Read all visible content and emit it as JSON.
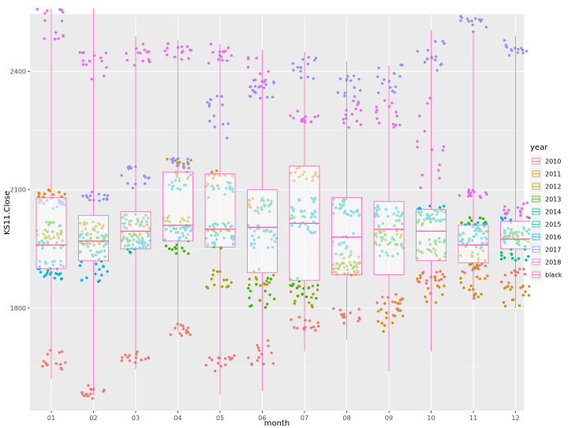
{
  "chart_data": {
    "type": "box-jitter",
    "xlabel": "month",
    "ylabel": "KS11.Close",
    "ylim": [
      1540,
      2545
    ],
    "y_ticks": [
      1800,
      2100,
      2400
    ],
    "categories": [
      "01",
      "02",
      "03",
      "04",
      "05",
      "06",
      "07",
      "08",
      "09",
      "10",
      "11",
      "12"
    ],
    "legend": {
      "title": "year",
      "position": "right",
      "entries": [
        "2010",
        "2011",
        "2012",
        "2013",
        "2014",
        "2015",
        "2016",
        "2017",
        "2018",
        "black"
      ]
    },
    "series_colors": {
      "2010": "#F8766D",
      "2011": "#D89000",
      "2012": "#A3A500",
      "2013": "#39B600",
      "2014": "#00BF7D",
      "2015": "#00BFC4",
      "2016": "#00B0F6",
      "2017": "#9590FF",
      "2018": "#E76BF3",
      "black": "#FF62BC"
    },
    "box_color": "#FF62BC",
    "boxes": [
      {
        "month": "01",
        "min": 1620,
        "q1": 1900,
        "median": 1960,
        "q3": 2080,
        "max": 2560
      },
      {
        "month": "02",
        "min": 1580,
        "q1": 1920,
        "median": 1970,
        "q3": 2035,
        "max": 2560
      },
      {
        "month": "03",
        "min": 1645,
        "q1": 1950,
        "median": 1995,
        "q3": 2045,
        "max": 2490
      },
      {
        "month": "04",
        "min": 1740,
        "q1": 1970,
        "median": 2010,
        "q3": 2145,
        "max": 2480
      },
      {
        "month": "05",
        "min": 1580,
        "q1": 1955,
        "median": 2000,
        "q3": 2140,
        "max": 2470
      },
      {
        "month": "06",
        "min": 1590,
        "q1": 1890,
        "median": 2005,
        "q3": 2100,
        "max": 2455
      },
      {
        "month": "07",
        "min": 1690,
        "q1": 1870,
        "median": 2015,
        "q3": 2160,
        "max": 2450
      },
      {
        "month": "08",
        "min": 1720,
        "q1": 1885,
        "median": 1980,
        "q3": 2080,
        "max": 2425
      },
      {
        "month": "09",
        "min": 1640,
        "q1": 1885,
        "median": 2000,
        "q3": 2070,
        "max": 2415
      },
      {
        "month": "10",
        "min": 1690,
        "q1": 1920,
        "median": 1995,
        "q3": 2050,
        "max": 2505
      },
      {
        "month": "11",
        "min": 1820,
        "q1": 1915,
        "median": 1960,
        "q3": 2010,
        "max": 2505
      },
      {
        "month": "12",
        "min": 1800,
        "q1": 1950,
        "median": 1975,
        "q3": 2020,
        "max": 2490
      }
    ],
    "series": [
      {
        "name": "2010",
        "points": [
          {
            "month": "01",
            "y": [
              1700,
              1640
            ]
          },
          {
            "month": "02",
            "y": [
              1610,
              1570
            ]
          },
          {
            "month": "03",
            "y": [
              1690,
              1655
            ]
          },
          {
            "month": "04",
            "y": [
              1730,
              1760
            ]
          },
          {
            "month": "05",
            "y": [
              1640,
              1690
            ]
          },
          {
            "month": "06",
            "y": [
              1650,
              1720
            ]
          },
          {
            "month": "07",
            "y": [
              1740,
              1780
            ]
          },
          {
            "month": "08",
            "y": [
              1760,
              1800
            ]
          },
          {
            "month": "09",
            "y": [
              1780,
              1840
            ]
          },
          {
            "month": "10",
            "y": [
              1860,
              1900
            ]
          },
          {
            "month": "11",
            "y": [
              1880,
              1920
            ]
          },
          {
            "month": "12",
            "y": [
              1850,
              1900
            ]
          }
        ]
      },
      {
        "name": "2011",
        "points": [
          {
            "month": "01",
            "y": [
              2070,
              2100
            ]
          },
          {
            "month": "02",
            "y": [
              1960,
              2000
            ]
          },
          {
            "month": "03",
            "y": [
              1970,
              2010
            ]
          },
          {
            "month": "04",
            "y": [
              2120,
              2180
            ]
          },
          {
            "month": "05",
            "y": [
              2100,
              2150
            ]
          },
          {
            "month": "06",
            "y": [
              2040,
              2080
            ]
          },
          {
            "month": "07",
            "y": [
              2120,
              2160
            ]
          },
          {
            "month": "08",
            "y": [
              1880,
              1920
            ]
          },
          {
            "month": "09",
            "y": [
              1740,
              1820
            ]
          },
          {
            "month": "10",
            "y": [
              1800,
              1880
            ]
          },
          {
            "month": "11",
            "y": [
              1820,
              1880
            ]
          },
          {
            "month": "12",
            "y": [
              1800,
              1860
            ]
          }
        ]
      },
      {
        "name": "2012",
        "points": [
          {
            "month": "01",
            "y": [
              1950,
              1990
            ]
          },
          {
            "month": "02",
            "y": [
              2000,
              2030
            ]
          },
          {
            "month": "03",
            "y": [
              2010,
              2040
            ]
          },
          {
            "month": "04",
            "y": [
              2000,
              2040
            ]
          },
          {
            "month": "05",
            "y": [
              1850,
              1900
            ]
          },
          {
            "month": "06",
            "y": [
              1850,
              1900
            ]
          },
          {
            "month": "07",
            "y": [
              1800,
              1860
            ]
          },
          {
            "month": "08",
            "y": [
              1890,
              1950
            ]
          },
          {
            "month": "09",
            "y": [
              1950,
              2000
            ]
          },
          {
            "month": "10",
            "y": [
              1920,
              1970
            ]
          },
          {
            "month": "11",
            "y": [
              1900,
              1950
            ]
          },
          {
            "month": "12",
            "y": [
              1960,
              2000
            ]
          }
        ]
      },
      {
        "name": "2013",
        "points": [
          {
            "month": "01",
            "y": [
              1990,
              2020
            ]
          },
          {
            "month": "02",
            "y": [
              1960,
              2000
            ]
          },
          {
            "month": "03",
            "y": [
              1950,
              1990
            ]
          },
          {
            "month": "04",
            "y": [
              1930,
              1980
            ]
          },
          {
            "month": "05",
            "y": [
              1950,
              2000
            ]
          },
          {
            "month": "06",
            "y": [
              1800,
              1880
            ]
          },
          {
            "month": "07",
            "y": [
              1820,
              1880
            ]
          },
          {
            "month": "08",
            "y": [
              1880,
              1920
            ]
          },
          {
            "month": "09",
            "y": [
              1960,
              2000
            ]
          },
          {
            "month": "10",
            "y": [
              2010,
              2050
            ]
          },
          {
            "month": "11",
            "y": [
              1980,
              2030
            ]
          },
          {
            "month": "12",
            "y": [
              1970,
              2000
            ]
          }
        ]
      },
      {
        "name": "2014",
        "points": [
          {
            "month": "01",
            "y": [
              1950,
              1970
            ]
          },
          {
            "month": "02",
            "y": [
              1920,
              1950
            ]
          },
          {
            "month": "03",
            "y": [
              1940,
              1980
            ]
          },
          {
            "month": "04",
            "y": [
              1990,
              2010
            ]
          },
          {
            "month": "05",
            "y": [
              2000,
              2020
            ]
          },
          {
            "month": "06",
            "y": [
              1990,
              2010
            ]
          },
          {
            "month": "07",
            "y": [
              2020,
              2080
            ]
          },
          {
            "month": "08",
            "y": [
              2040,
              2080
            ]
          },
          {
            "month": "09",
            "y": [
              2000,
              2050
            ]
          },
          {
            "month": "10",
            "y": [
              1930,
              1980
            ]
          },
          {
            "month": "11",
            "y": [
              1950,
              1980
            ]
          },
          {
            "month": "12",
            "y": [
              1920,
              1960
            ]
          }
        ]
      },
      {
        "name": "2015",
        "points": [
          {
            "month": "01",
            "y": [
              1880,
              1920
            ]
          },
          {
            "month": "02",
            "y": [
              1950,
              2000
            ]
          },
          {
            "month": "03",
            "y": [
              2000,
              2040
            ]
          },
          {
            "month": "04",
            "y": [
              2100,
              2140
            ]
          },
          {
            "month": "05",
            "y": [
              2080,
              2120
            ]
          },
          {
            "month": "06",
            "y": [
              2040,
              2080
            ]
          },
          {
            "month": "07",
            "y": [
              2030,
              2080
            ]
          },
          {
            "month": "08",
            "y": [
              1930,
              2000
            ]
          },
          {
            "month": "09",
            "y": [
              1930,
              1980
            ]
          },
          {
            "month": "10",
            "y": [
              2020,
              2040
            ]
          },
          {
            "month": "11",
            "y": [
              1990,
              2020
            ]
          },
          {
            "month": "12",
            "y": [
              1960,
              2000
            ]
          }
        ]
      },
      {
        "name": "2016",
        "points": [
          {
            "month": "01",
            "y": [
              1870,
              1910
            ]
          },
          {
            "month": "02",
            "y": [
              1860,
              1920
            ]
          },
          {
            "month": "03",
            "y": [
              1950,
              1990
            ]
          },
          {
            "month": "04",
            "y": [
              1970,
              2010
            ]
          },
          {
            "month": "05",
            "y": [
              1960,
              1990
            ]
          },
          {
            "month": "06",
            "y": [
              1950,
              1990
            ]
          },
          {
            "month": "07",
            "y": [
              1990,
              2020
            ]
          },
          {
            "month": "08",
            "y": [
              2030,
              2060
            ]
          },
          {
            "month": "09",
            "y": [
              2030,
              2060
            ]
          },
          {
            "month": "10",
            "y": [
              2020,
              2060
            ]
          },
          {
            "month": "11",
            "y": [
              1960,
              2000
            ]
          },
          {
            "month": "12",
            "y": [
              1990,
              2030
            ]
          }
        ]
      },
      {
        "name": "2017",
        "points": [
          {
            "month": "01",
            "y": [
              2050,
              2080
            ]
          },
          {
            "month": "02",
            "y": [
              2070,
              2100
            ]
          },
          {
            "month": "03",
            "y": [
              2100,
              2160
            ]
          },
          {
            "month": "04",
            "y": [
              2130,
              2180
            ]
          },
          {
            "month": "05",
            "y": [
              2220,
              2340
            ]
          },
          {
            "month": "06",
            "y": [
              2330,
              2380
            ]
          },
          {
            "month": "07",
            "y": [
              2380,
              2440
            ]
          },
          {
            "month": "08",
            "y": [
              2320,
              2390
            ]
          },
          {
            "month": "09",
            "y": [
              2340,
              2420
            ]
          },
          {
            "month": "10",
            "y": [
              2400,
              2480
            ]
          },
          {
            "month": "11",
            "y": [
              2500,
              2540
            ]
          },
          {
            "month": "12",
            "y": [
              2440,
              2480
            ]
          }
        ]
      },
      {
        "name": "2018",
        "points": [
          {
            "month": "01",
            "y": [
              2480,
              2560
            ]
          },
          {
            "month": "02",
            "y": [
              2380,
              2450
            ]
          },
          {
            "month": "03",
            "y": [
              2410,
              2480
            ]
          },
          {
            "month": "04",
            "y": [
              2420,
              2470
            ]
          },
          {
            "month": "05",
            "y": [
              2420,
              2470
            ]
          },
          {
            "month": "06",
            "y": [
              2330,
              2440
            ]
          },
          {
            "month": "07",
            "y": [
              2270,
              2300
            ]
          },
          {
            "month": "08",
            "y": [
              2250,
              2330
            ]
          },
          {
            "month": "09",
            "y": [
              2250,
              2340
            ]
          },
          {
            "month": "10",
            "y": [
              2050,
              2340
            ]
          },
          {
            "month": "11",
            "y": [
              2070,
              2100
            ]
          },
          {
            "month": "12",
            "y": [
              2030,
              2070
            ]
          }
        ]
      }
    ]
  }
}
